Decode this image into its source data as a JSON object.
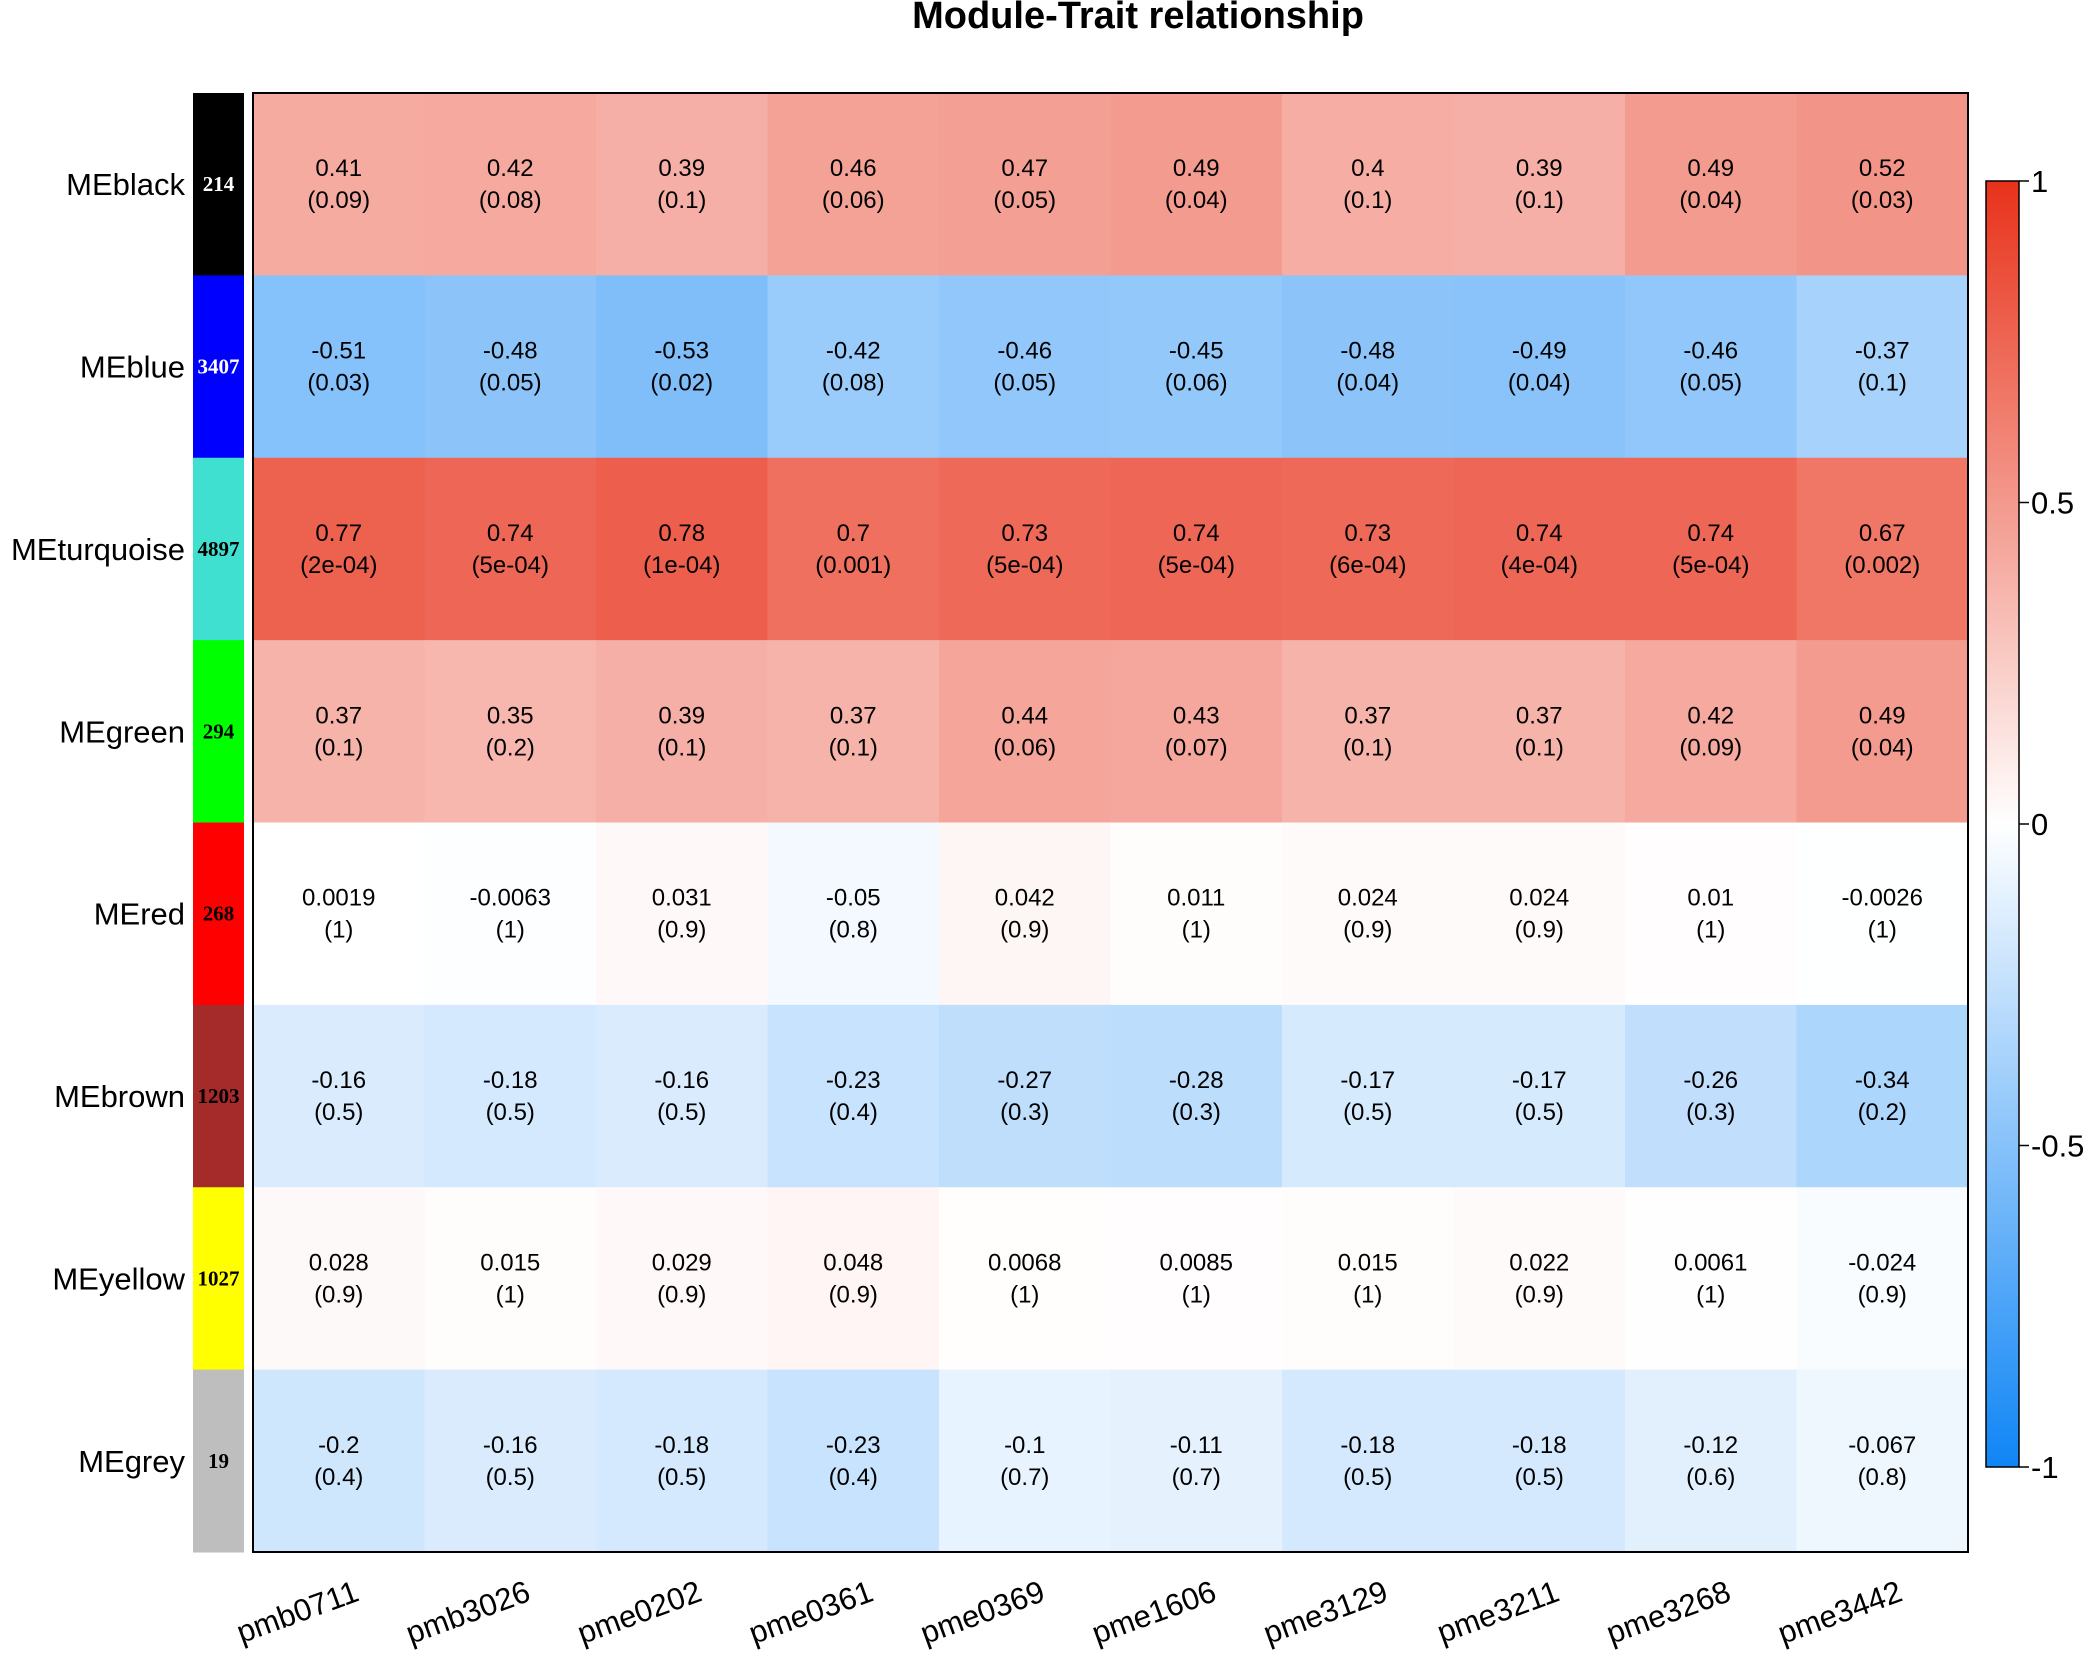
{
  "chart_data": {
    "type": "heatmap",
    "title": "Module-Trait relationship",
    "columns": [
      "pmb0711",
      "pmb3026",
      "pme0202",
      "pme0361",
      "pme0369",
      "pme1606",
      "pme3129",
      "pme3211",
      "pme3268",
      "pme3442"
    ],
    "rows": [
      {
        "name": "MEblack",
        "color": "#000000",
        "count": "214",
        "count_color": "#ffffff",
        "values": [
          0.41,
          0.42,
          0.39,
          0.46,
          0.47,
          0.49,
          0.4,
          0.39,
          0.49,
          0.52
        ],
        "labels": [
          "0.41",
          "0.42",
          "0.39",
          "0.46",
          "0.47",
          "0.49",
          "0.4",
          "0.39",
          "0.49",
          "0.52"
        ],
        "pvalues": [
          "(0.09)",
          "(0.08)",
          "(0.1)",
          "(0.06)",
          "(0.05)",
          "(0.04)",
          "(0.1)",
          "(0.1)",
          "(0.04)",
          "(0.03)"
        ]
      },
      {
        "name": "MEblue",
        "color": "#0000ff",
        "count": "3407",
        "count_color": "#ffffff",
        "values": [
          -0.51,
          -0.48,
          -0.53,
          -0.42,
          -0.46,
          -0.45,
          -0.48,
          -0.49,
          -0.46,
          -0.37
        ],
        "labels": [
          "-0.51",
          "-0.48",
          "-0.53",
          "-0.42",
          "-0.46",
          "-0.45",
          "-0.48",
          "-0.49",
          "-0.46",
          "-0.37"
        ],
        "pvalues": [
          "(0.03)",
          "(0.05)",
          "(0.02)",
          "(0.08)",
          "(0.05)",
          "(0.06)",
          "(0.04)",
          "(0.04)",
          "(0.05)",
          "(0.1)"
        ]
      },
      {
        "name": "MEturquoise",
        "color": "#40e0d0",
        "count": "4897",
        "count_color": "#000000",
        "values": [
          0.77,
          0.74,
          0.78,
          0.7,
          0.73,
          0.74,
          0.73,
          0.74,
          0.74,
          0.67
        ],
        "labels": [
          "0.77",
          "0.74",
          "0.78",
          "0.7",
          "0.73",
          "0.74",
          "0.73",
          "0.74",
          "0.74",
          "0.67"
        ],
        "pvalues": [
          "(2e-04)",
          "(5e-04)",
          "(1e-04)",
          "(0.001)",
          "(5e-04)",
          "(5e-04)",
          "(6e-04)",
          "(4e-04)",
          "(5e-04)",
          "(0.002)"
        ]
      },
      {
        "name": "MEgreen",
        "color": "#00ff00",
        "count": "294",
        "count_color": "#000000",
        "values": [
          0.37,
          0.35,
          0.39,
          0.37,
          0.44,
          0.43,
          0.37,
          0.37,
          0.42,
          0.49
        ],
        "labels": [
          "0.37",
          "0.35",
          "0.39",
          "0.37",
          "0.44",
          "0.43",
          "0.37",
          "0.37",
          "0.42",
          "0.49"
        ],
        "pvalues": [
          "(0.1)",
          "(0.2)",
          "(0.1)",
          "(0.1)",
          "(0.06)",
          "(0.07)",
          "(0.1)",
          "(0.1)",
          "(0.09)",
          "(0.04)"
        ]
      },
      {
        "name": "MEred",
        "color": "#ff0000",
        "count": "268",
        "count_color": "#000000",
        "values": [
          0.0019,
          -0.0063,
          0.031,
          -0.05,
          0.042,
          0.011,
          0.024,
          0.024,
          0.01,
          -0.0026
        ],
        "labels": [
          "0.0019",
          "-0.0063",
          "0.031",
          "-0.05",
          "0.042",
          "0.011",
          "0.024",
          "0.024",
          "0.01",
          "-0.0026"
        ],
        "pvalues": [
          "(1)",
          "(1)",
          "(0.9)",
          "(0.8)",
          "(0.9)",
          "(1)",
          "(0.9)",
          "(0.9)",
          "(1)",
          "(1)"
        ]
      },
      {
        "name": "MEbrown",
        "color": "#a52a2a",
        "count": "1203",
        "count_color": "#000000",
        "values": [
          -0.16,
          -0.18,
          -0.16,
          -0.23,
          -0.27,
          -0.28,
          -0.17,
          -0.17,
          -0.26,
          -0.34
        ],
        "labels": [
          "-0.16",
          "-0.18",
          "-0.16",
          "-0.23",
          "-0.27",
          "-0.28",
          "-0.17",
          "-0.17",
          "-0.26",
          "-0.34"
        ],
        "pvalues": [
          "(0.5)",
          "(0.5)",
          "(0.5)",
          "(0.4)",
          "(0.3)",
          "(0.3)",
          "(0.5)",
          "(0.5)",
          "(0.3)",
          "(0.2)"
        ]
      },
      {
        "name": "MEyellow",
        "color": "#ffff00",
        "count": "1027",
        "count_color": "#000000",
        "values": [
          0.028,
          0.015,
          0.029,
          0.048,
          0.0068,
          0.0085,
          0.015,
          0.022,
          0.0061,
          -0.024
        ],
        "labels": [
          "0.028",
          "0.015",
          "0.029",
          "0.048",
          "0.0068",
          "0.0085",
          "0.015",
          "0.022",
          "0.0061",
          "-0.024"
        ],
        "pvalues": [
          "(0.9)",
          "(1)",
          "(0.9)",
          "(0.9)",
          "(1)",
          "(1)",
          "(1)",
          "(0.9)",
          "(1)",
          "(0.9)"
        ]
      },
      {
        "name": "MEgrey",
        "color": "#bebebe",
        "count": "19",
        "count_color": "#000000",
        "values": [
          -0.2,
          -0.16,
          -0.18,
          -0.23,
          -0.1,
          -0.11,
          -0.18,
          -0.18,
          -0.12,
          -0.067
        ],
        "labels": [
          "-0.2",
          "-0.16",
          "-0.18",
          "-0.23",
          "-0.1",
          "-0.11",
          "-0.18",
          "-0.18",
          "-0.12",
          "-0.067"
        ],
        "pvalues": [
          "(0.4)",
          "(0.5)",
          "(0.5)",
          "(0.4)",
          "(0.7)",
          "(0.7)",
          "(0.5)",
          "(0.5)",
          "(0.6)",
          "(0.8)"
        ]
      }
    ],
    "scale": {
      "min": -1,
      "max": 1,
      "low_color": "#0f85f5",
      "mid_color": "#ffffff",
      "high_color": "#e8321a",
      "ticks": [
        {
          "value": 1,
          "label": "1"
        },
        {
          "value": 0.5,
          "label": "0.5"
        },
        {
          "value": 0,
          "label": "0"
        },
        {
          "value": -0.5,
          "label": "-0.5"
        },
        {
          "value": -1,
          "label": "-1"
        }
      ]
    }
  }
}
